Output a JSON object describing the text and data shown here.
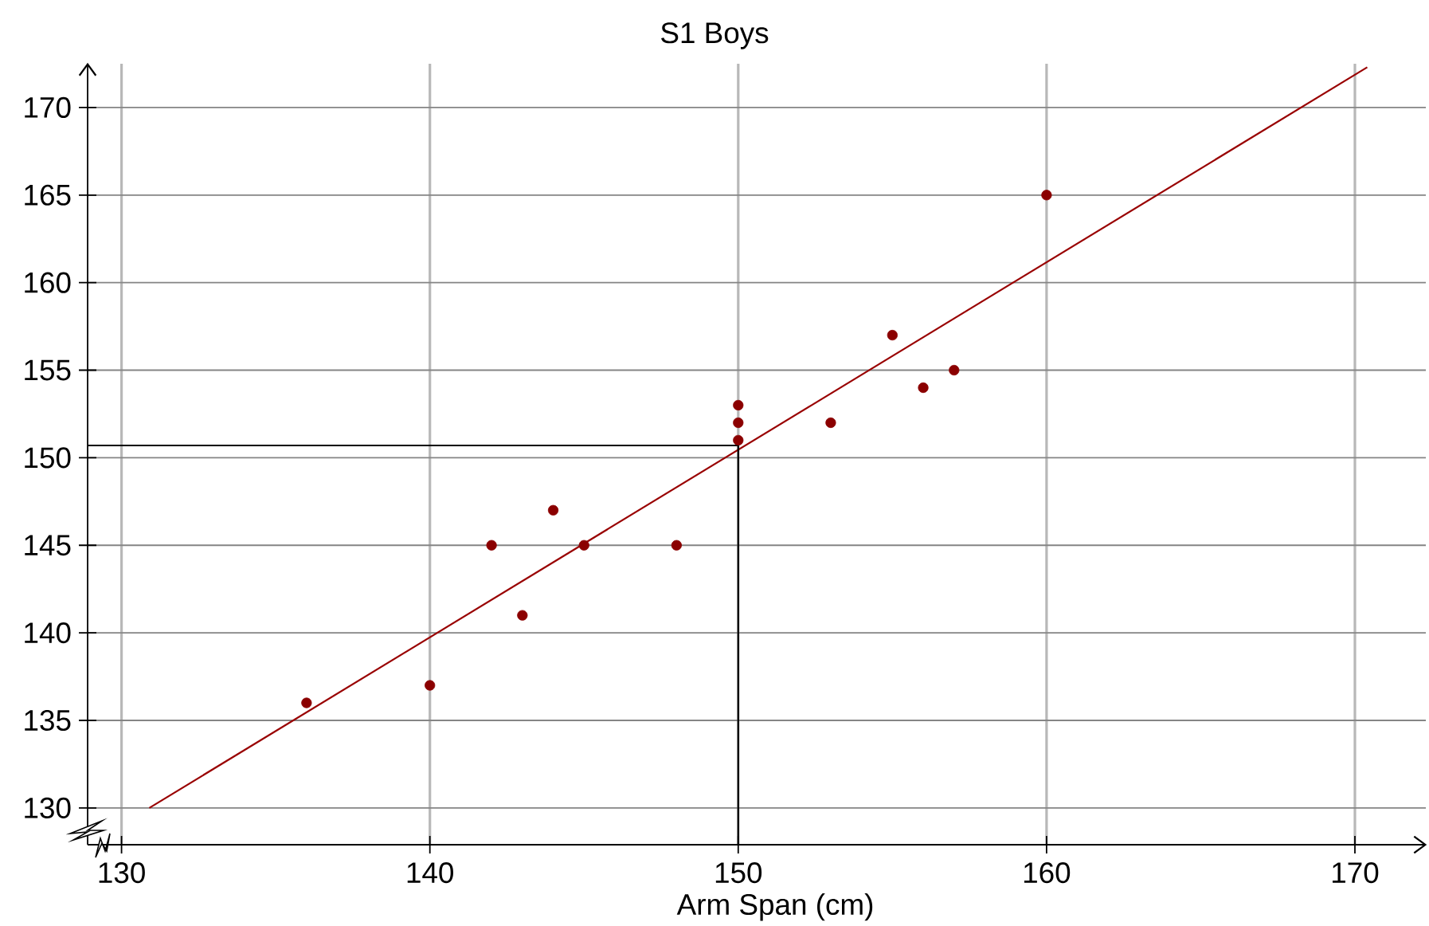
{
  "chart_data": {
    "type": "scatter",
    "title": "S1 Boys",
    "xlabel": "Arm Span (cm)",
    "xlim": [
      128.9,
      172.3
    ],
    "ylim": [
      127.9,
      172.5
    ],
    "xticks": [
      130,
      140,
      150,
      160,
      170
    ],
    "yticks": [
      130,
      135,
      140,
      145,
      150,
      155,
      160,
      165,
      170
    ],
    "grid": true,
    "marker": "circle",
    "series": [
      {
        "color": "#8b0000",
        "x": [
          136,
          140,
          142,
          143,
          144,
          145,
          148,
          150,
          150,
          150,
          153,
          155,
          156,
          157,
          160
        ],
        "values": [
          136,
          137,
          145,
          141,
          147,
          145,
          145,
          151,
          152,
          153,
          152,
          157,
          154,
          155,
          165
        ]
      },
      {
        "type": "line",
        "marker": "none",
        "color": "#990000",
        "x": [
          130.9,
          170.4
        ],
        "values": [
          130,
          172.3
        ]
      },
      {
        "type": "line",
        "marker": "none",
        "color": "#000000",
        "x": [
          128.9,
          150,
          150
        ],
        "values": [
          150.7,
          150.7,
          127.9
        ]
      }
    ]
  }
}
